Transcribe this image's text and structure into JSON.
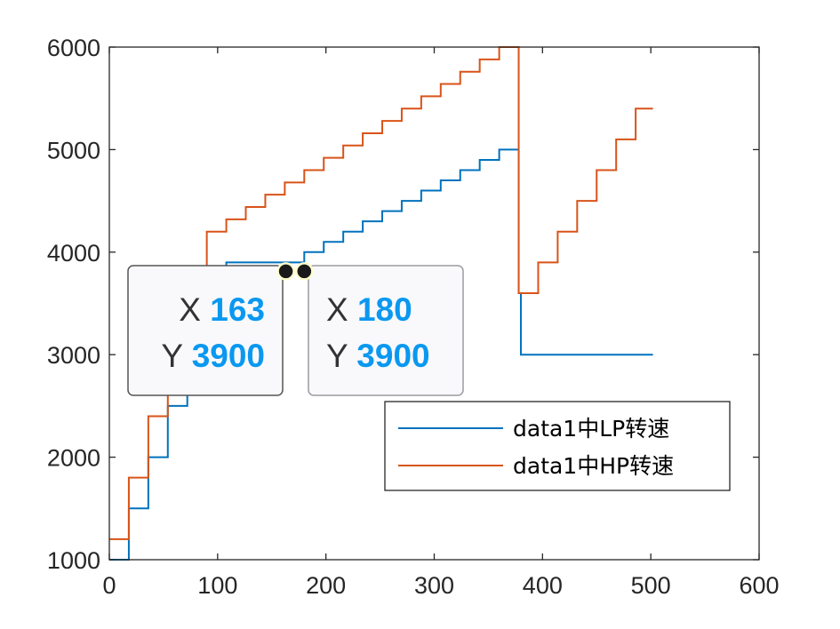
{
  "chart_data": {
    "type": "line",
    "title": "",
    "xlabel": "",
    "ylabel": "",
    "xlim": [
      0,
      600
    ],
    "ylim": [
      1000,
      6000
    ],
    "xticks": [
      0,
      100,
      200,
      300,
      400,
      500,
      600
    ],
    "yticks": [
      1000,
      2000,
      3000,
      4000,
      5000,
      6000
    ],
    "xtick_labels": [
      "0",
      "100",
      "200",
      "300",
      "400",
      "500",
      "600"
    ],
    "ytick_labels": [
      "1000",
      "2000",
      "3000",
      "4000",
      "5000",
      "6000"
    ],
    "grid": false,
    "legend_position": "bottom-right",
    "series": [
      {
        "name": "data1中LP转速",
        "color": "#0072bd",
        "points": [
          [
            0,
            1000
          ],
          [
            18,
            1000
          ],
          [
            18,
            1500
          ],
          [
            36,
            1500
          ],
          [
            36,
            2000
          ],
          [
            54,
            2000
          ],
          [
            54,
            2500
          ],
          [
            72,
            2500
          ],
          [
            72,
            3000
          ],
          [
            90,
            3000
          ],
          [
            90,
            3500
          ],
          [
            108,
            3500
          ],
          [
            108,
            3900
          ],
          [
            180,
            3900
          ],
          [
            180,
            4000
          ],
          [
            198,
            4000
          ],
          [
            198,
            4100
          ],
          [
            216,
            4100
          ],
          [
            216,
            4200
          ],
          [
            234,
            4200
          ],
          [
            234,
            4300
          ],
          [
            252,
            4300
          ],
          [
            252,
            4400
          ],
          [
            270,
            4400
          ],
          [
            270,
            4500
          ],
          [
            288,
            4500
          ],
          [
            288,
            4600
          ],
          [
            306,
            4600
          ],
          [
            306,
            4700
          ],
          [
            324,
            4700
          ],
          [
            324,
            4800
          ],
          [
            342,
            4800
          ],
          [
            342,
            4900
          ],
          [
            360,
            4900
          ],
          [
            360,
            5000
          ],
          [
            378,
            5000
          ],
          [
            378,
            3600
          ],
          [
            380,
            3600
          ],
          [
            380,
            3000
          ],
          [
            502,
            3000
          ]
        ]
      },
      {
        "name": "data1中HP转速",
        "color": "#d95319",
        "points": [
          [
            0,
            1200
          ],
          [
            18,
            1200
          ],
          [
            18,
            1800
          ],
          [
            36,
            1800
          ],
          [
            36,
            2400
          ],
          [
            54,
            2400
          ],
          [
            54,
            3000
          ],
          [
            72,
            3000
          ],
          [
            72,
            3600
          ],
          [
            90,
            3600
          ],
          [
            90,
            4200
          ],
          [
            108,
            4200
          ],
          [
            108,
            4320
          ],
          [
            126,
            4320
          ],
          [
            126,
            4440
          ],
          [
            144,
            4440
          ],
          [
            144,
            4560
          ],
          [
            162,
            4560
          ],
          [
            162,
            4680
          ],
          [
            180,
            4680
          ],
          [
            180,
            4800
          ],
          [
            198,
            4800
          ],
          [
            198,
            4920
          ],
          [
            216,
            4920
          ],
          [
            216,
            5040
          ],
          [
            234,
            5040
          ],
          [
            234,
            5160
          ],
          [
            252,
            5160
          ],
          [
            252,
            5280
          ],
          [
            270,
            5280
          ],
          [
            270,
            5400
          ],
          [
            288,
            5400
          ],
          [
            288,
            5520
          ],
          [
            306,
            5520
          ],
          [
            306,
            5640
          ],
          [
            324,
            5640
          ],
          [
            324,
            5760
          ],
          [
            342,
            5760
          ],
          [
            342,
            5880
          ],
          [
            360,
            5880
          ],
          [
            360,
            6000
          ],
          [
            378,
            6000
          ],
          [
            378,
            3600
          ],
          [
            396,
            3600
          ],
          [
            396,
            3900
          ],
          [
            414,
            3900
          ],
          [
            414,
            4200
          ],
          [
            432,
            4200
          ],
          [
            432,
            4500
          ],
          [
            450,
            4500
          ],
          [
            450,
            4800
          ],
          [
            468,
            4800
          ],
          [
            468,
            5100
          ],
          [
            486,
            5100
          ],
          [
            486,
            5400
          ],
          [
            502,
            5400
          ]
        ]
      }
    ],
    "datatips": [
      {
        "x": 163,
        "y": 3900,
        "x_key": "X",
        "y_key": "Y",
        "x_text": "163",
        "y_text": "3900"
      },
      {
        "x": 180,
        "y": 3900,
        "x_key": "X",
        "y_key": "Y",
        "x_text": "180",
        "y_text": "3900"
      }
    ]
  }
}
